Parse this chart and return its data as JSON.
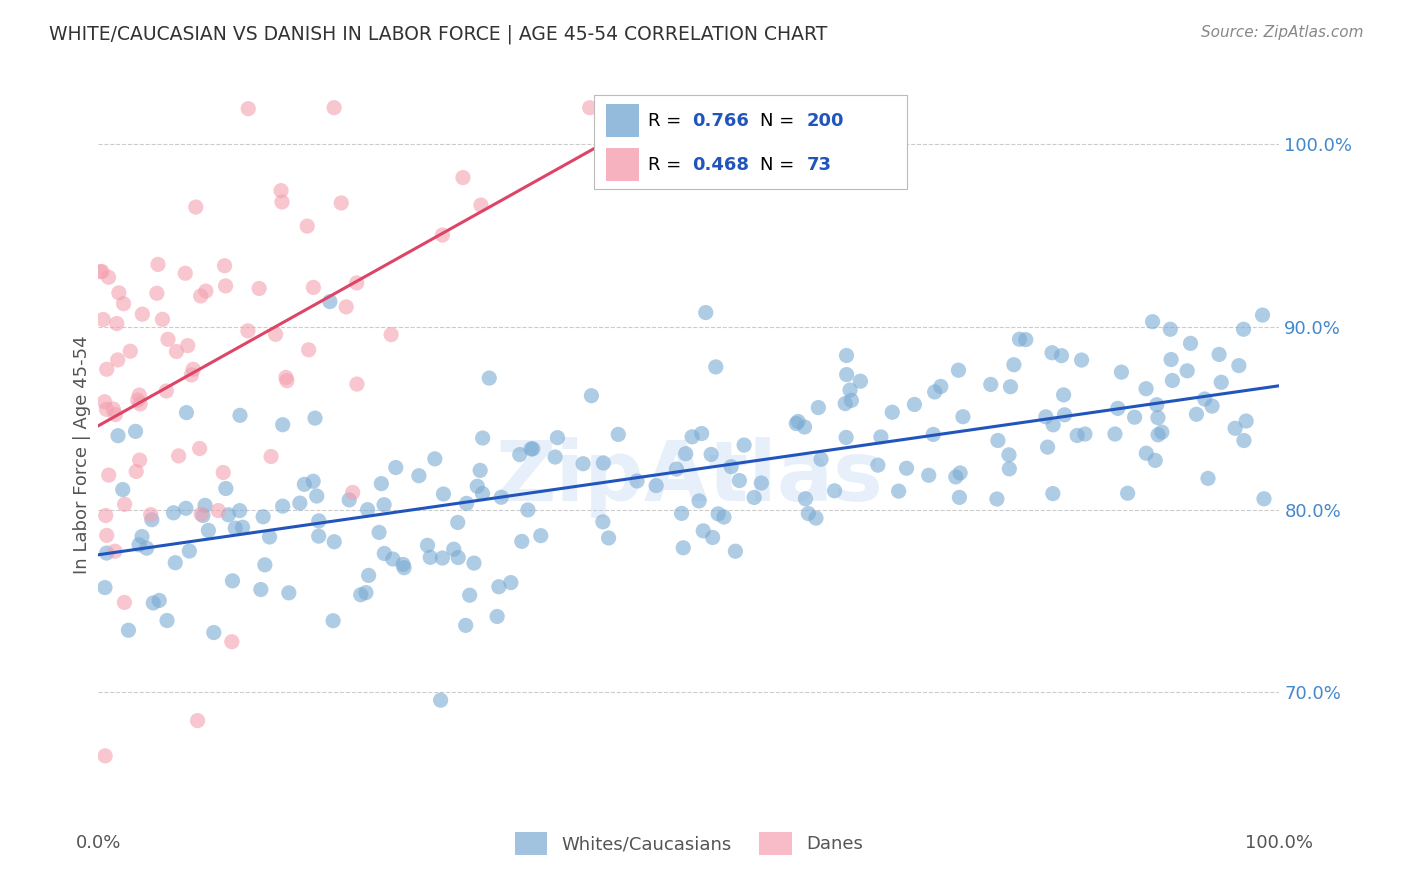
{
  "title": "WHITE/CAUCASIAN VS DANISH IN LABOR FORCE | AGE 45-54 CORRELATION CHART",
  "source": "Source: ZipAtlas.com",
  "ylabel_label": "In Labor Force | Age 45-54",
  "x_min": 0.0,
  "x_max": 1.0,
  "y_min": 0.625,
  "y_max": 1.035,
  "y_tick_positions": [
    0.7,
    0.8,
    0.9,
    1.0
  ],
  "y_tick_labels": [
    "70.0%",
    "80.0%",
    "90.0%",
    "100.0%"
  ],
  "watermark": "ZipAtlas",
  "blue_color": "#7BAAD4",
  "pink_color": "#F4A0B0",
  "blue_line_color": "#2255BB",
  "pink_line_color": "#DD4466",
  "legend_R_blue": "0.766",
  "legend_N_blue": "200",
  "legend_R_pink": "0.468",
  "legend_N_pink": "73",
  "blue_label": "Whites/Caucasians",
  "pink_label": "Danes",
  "blue_n": 200,
  "pink_n": 73,
  "background_color": "#FFFFFF",
  "grid_color": "#CCCCCC",
  "title_color": "#333333",
  "source_color": "#888888",
  "axis_label_color": "#555555",
  "tick_color_y": "#4488CC",
  "tick_color_x": "#555555"
}
